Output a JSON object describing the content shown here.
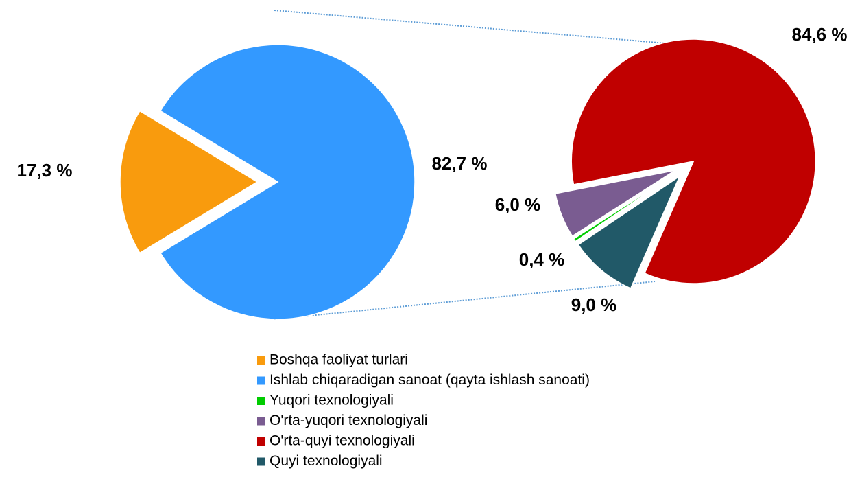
{
  "chart_data": [
    {
      "type": "pie",
      "categories": [
        "Boshqa faoliyat turlari",
        "Ishlab chiqaradigan sanoat (qayta ishlash sanoati)"
      ],
      "values": [
        17.3,
        82.7
      ],
      "value_labels": [
        "17,3 %",
        "82,7 %"
      ],
      "colors": [
        "#f99b0d",
        "#3399ff"
      ]
    },
    {
      "type": "pie",
      "categories": [
        "Yuqori texnologiyali",
        "O'rta-yuqori texnologiyali",
        "O'rta-quyi texnologiyali",
        "Quyi texnologiyali"
      ],
      "values": [
        0.4,
        6.0,
        84.6,
        9.0
      ],
      "value_labels": [
        "0,4 %",
        "6,0 %",
        "84,6 %",
        "9,0 %"
      ],
      "colors": [
        "#00cc00",
        "#7a5c91",
        "#c00000",
        "#215968"
      ]
    }
  ]
}
